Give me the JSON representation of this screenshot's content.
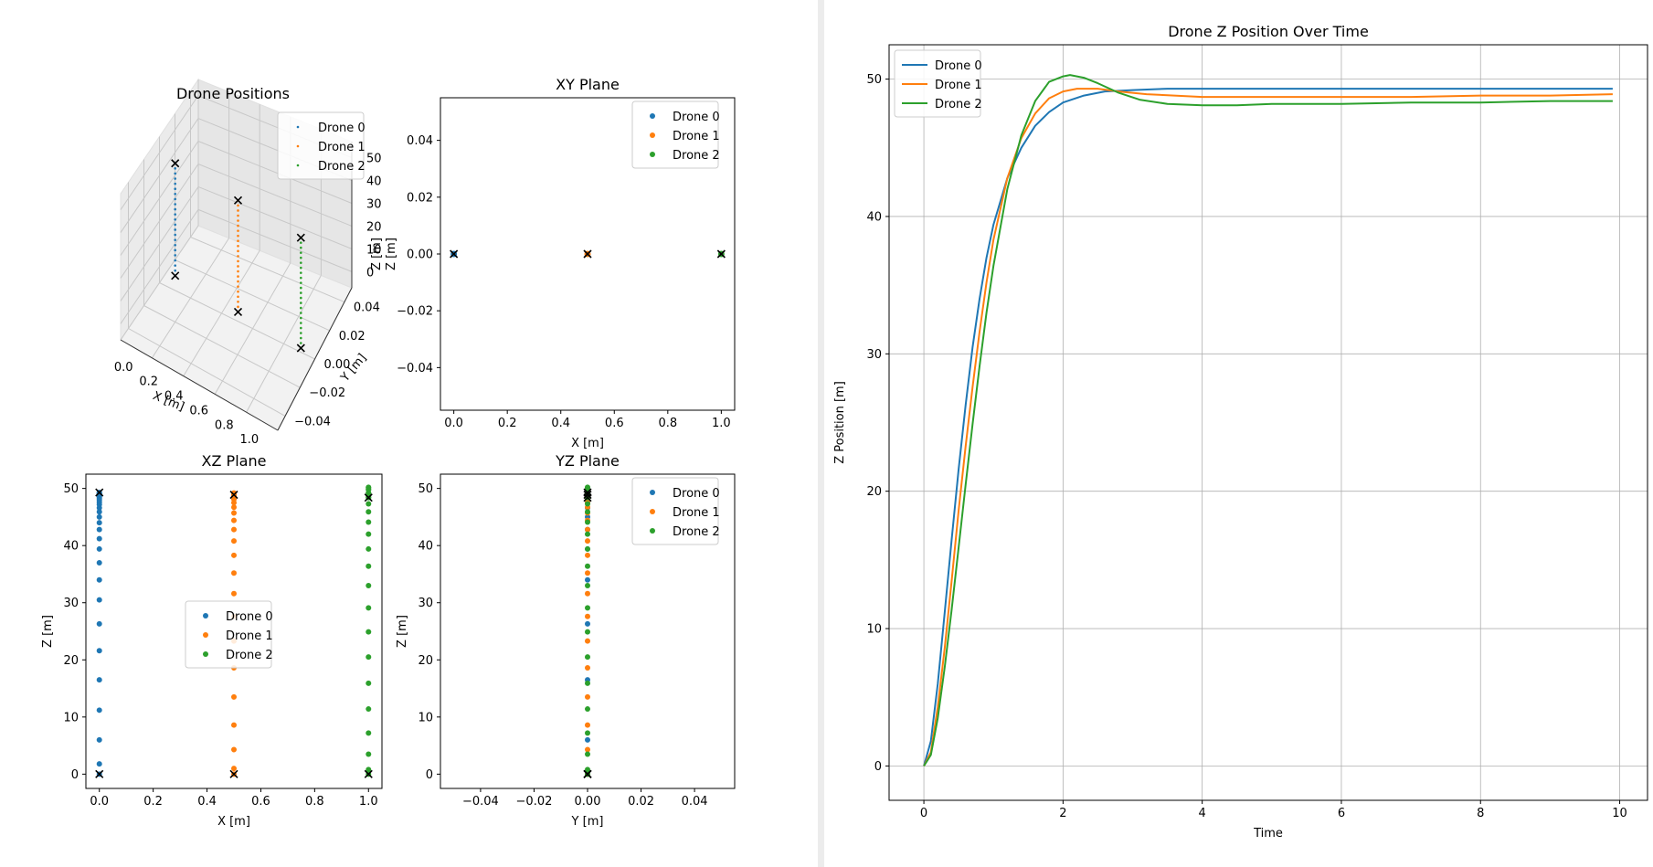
{
  "colors": {
    "drone0": "#1f77b4",
    "drone1": "#ff7f0e",
    "drone2": "#2ca02c",
    "marker": "#000000",
    "grid": "#b0b0b0"
  },
  "series_names": [
    "Drone 0",
    "Drone 1",
    "Drone 2"
  ],
  "chart_data": [
    {
      "id": "positions3d",
      "type": "scatter",
      "projection": "3d",
      "title": "Drone Positions",
      "xlabel": "X [m]",
      "ylabel": "Y [m]",
      "zlabel": "Z [m]",
      "xlim": [
        0,
        1
      ],
      "ylim": [
        -0.05,
        0.05
      ],
      "zlim": [
        0,
        50
      ],
      "xticks": [
        "0.0",
        "0.2",
        "0.4",
        "0.6",
        "0.8",
        "1.0"
      ],
      "yticks": [
        "−0.04",
        "−0.02",
        "0.00",
        "0.02",
        "0.04"
      ],
      "zticks": [
        "0",
        "10",
        "20",
        "30",
        "40",
        "50"
      ],
      "legend": "upper-right",
      "grid": true,
      "series": [
        {
          "name": "Drone 0",
          "x": 0.0,
          "y": 0.0,
          "start_z": 0,
          "end_z": 49.3
        },
        {
          "name": "Drone 1",
          "x": 0.5,
          "y": 0.0,
          "start_z": 0,
          "end_z": 48.9
        },
        {
          "name": "Drone 2",
          "x": 1.0,
          "y": 0.0,
          "start_z": 0,
          "end_z": 48.4
        }
      ]
    },
    {
      "id": "xy",
      "type": "scatter",
      "title": "XY Plane",
      "xlabel": "X [m]",
      "ylabel": "Z [m]",
      "xlim": [
        -0.05,
        1.05
      ],
      "ylim": [
        -0.055,
        0.055
      ],
      "xticks": [
        0,
        0.2,
        0.4,
        0.6,
        0.8,
        1.0
      ],
      "yticks": [
        -0.04,
        -0.02,
        0,
        0.02,
        0.04
      ],
      "legend": "upper-right",
      "grid": false,
      "series": [
        {
          "name": "Drone 0",
          "x": [
            0.0
          ],
          "y": [
            0.0
          ]
        },
        {
          "name": "Drone 1",
          "x": [
            0.5
          ],
          "y": [
            0.0
          ]
        },
        {
          "name": "Drone 2",
          "x": [
            1.0
          ],
          "y": [
            0.0
          ]
        }
      ],
      "markers": {
        "x": [
          0.0,
          0.5,
          1.0
        ],
        "y": [
          0.0,
          0.0,
          0.0
        ]
      }
    },
    {
      "id": "xz",
      "type": "scatter",
      "title": "XZ Plane",
      "xlabel": "X [m]",
      "ylabel": "Z [m]",
      "xlim": [
        -0.05,
        1.05
      ],
      "ylim": [
        -2.5,
        52.5
      ],
      "xticks": [
        0,
        0.2,
        0.4,
        0.6,
        0.8,
        1.0
      ],
      "yticks": [
        0,
        10,
        20,
        30,
        40,
        50
      ],
      "legend": "center",
      "grid": false,
      "series": [
        {
          "name": "Drone 0",
          "x": 0.0,
          "z": [
            0.0,
            1.8,
            6.0,
            11.2,
            16.5,
            21.6,
            26.3,
            30.5,
            34.0,
            37.0,
            39.4,
            41.2,
            42.8,
            44.0,
            45.0,
            45.9,
            46.6,
            47.2,
            47.6,
            48.0,
            48.3,
            48.5,
            48.7,
            48.9,
            49.0,
            49.1,
            49.2,
            49.3
          ]
        },
        {
          "name": "Drone 1",
          "x": 0.5,
          "z": [
            0.0,
            1.0,
            4.3,
            8.6,
            13.5,
            18.6,
            23.3,
            27.6,
            31.6,
            35.2,
            38.3,
            40.8,
            42.8,
            44.4,
            45.7,
            46.7,
            47.5,
            48.1,
            48.6,
            48.9,
            49.1,
            49.2,
            48.9
          ]
        },
        {
          "name": "Drone 2",
          "x": 1.0,
          "z": [
            0.0,
            0.8,
            3.5,
            7.2,
            11.4,
            15.9,
            20.5,
            24.9,
            29.1,
            33.0,
            36.4,
            39.4,
            42.0,
            44.1,
            45.9,
            47.3,
            48.4,
            49.2,
            49.8,
            50.1,
            50.2,
            49.8,
            49.2,
            48.7,
            48.4
          ]
        }
      ],
      "markers": {
        "x": [
          0.0,
          0.0,
          0.5,
          0.5,
          1.0,
          1.0
        ],
        "z": [
          0.0,
          49.3,
          0.0,
          48.9,
          0.0,
          48.4
        ]
      }
    },
    {
      "id": "yz",
      "type": "scatter",
      "title": "YZ Plane",
      "xlabel": "Y [m]",
      "ylabel": "Z [m]",
      "xlim": [
        -0.055,
        0.055
      ],
      "ylim": [
        -2.5,
        52.5
      ],
      "xticks": [
        -0.04,
        -0.02,
        0,
        0.02,
        0.04
      ],
      "yticks": [
        0,
        10,
        20,
        30,
        40,
        50
      ],
      "legend": "upper-right",
      "grid": false,
      "series": [
        {
          "name": "Drone 0",
          "y": 0.0,
          "z": [
            0.0,
            6.0,
            16.5,
            26.3,
            34.0,
            39.4,
            42.8,
            45.0,
            46.6,
            47.6,
            48.3,
            48.7,
            49.0,
            49.2,
            49.3
          ]
        },
        {
          "name": "Drone 1",
          "y": 0.0,
          "z": [
            0.0,
            4.3,
            8.6,
            13.5,
            18.6,
            23.3,
            27.6,
            31.6,
            35.2,
            38.3,
            40.8,
            42.8,
            44.4,
            45.7,
            46.7,
            47.5,
            48.1,
            48.6,
            48.9,
            49.1,
            49.2,
            48.9
          ]
        },
        {
          "name": "Drone 2",
          "y": 0.0,
          "z": [
            0.0,
            0.8,
            3.5,
            7.2,
            11.4,
            15.9,
            20.5,
            24.9,
            29.1,
            33.0,
            36.4,
            39.4,
            42.0,
            44.1,
            45.9,
            47.3,
            48.4,
            49.2,
            49.8,
            50.1,
            50.2,
            49.8,
            49.2,
            48.7,
            48.4
          ]
        }
      ],
      "markers": {
        "y": [
          0.0,
          0.0,
          0.0,
          0.0,
          0.0,
          0.0
        ],
        "z": [
          0.0,
          49.3,
          0.0,
          48.9,
          0.0,
          48.4
        ]
      }
    },
    {
      "id": "ztime",
      "type": "line",
      "title": "Drone Z Position Over Time",
      "xlabel": "Time",
      "ylabel": "Z Position [m]",
      "xlim": [
        -0.5,
        10.4
      ],
      "ylim": [
        -2.5,
        52.5
      ],
      "xticks": [
        0,
        2,
        4,
        6,
        8,
        10
      ],
      "yticks": [
        0,
        10,
        20,
        30,
        40,
        50
      ],
      "legend": "upper-left",
      "grid": true,
      "series": [
        {
          "name": "Drone 0",
          "x": [
            0,
            0.1,
            0.2,
            0.3,
            0.4,
            0.5,
            0.6,
            0.7,
            0.8,
            0.9,
            1.0,
            1.2,
            1.4,
            1.6,
            1.8,
            2.0,
            2.3,
            2.6,
            3.0,
            3.5,
            4.0,
            5.0,
            6.0,
            7.0,
            8.0,
            9.0,
            9.9
          ],
          "y": [
            0,
            1.8,
            6.0,
            11.2,
            16.5,
            21.6,
            26.3,
            30.5,
            34.0,
            37.0,
            39.4,
            42.8,
            45.0,
            46.6,
            47.6,
            48.3,
            48.8,
            49.1,
            49.2,
            49.3,
            49.3,
            49.3,
            49.3,
            49.3,
            49.3,
            49.3,
            49.3
          ]
        },
        {
          "name": "Drone 1",
          "x": [
            0,
            0.1,
            0.2,
            0.3,
            0.4,
            0.5,
            0.6,
            0.7,
            0.8,
            0.9,
            1.0,
            1.2,
            1.4,
            1.6,
            1.8,
            2.0,
            2.2,
            2.5,
            2.8,
            3.2,
            3.6,
            4.0,
            5.0,
            6.0,
            7.0,
            8.0,
            9.0,
            9.9
          ],
          "y": [
            0,
            1.0,
            4.3,
            8.6,
            13.5,
            18.6,
            23.3,
            27.6,
            31.6,
            35.2,
            38.3,
            42.8,
            45.7,
            47.5,
            48.6,
            49.1,
            49.3,
            49.3,
            49.1,
            48.9,
            48.8,
            48.7,
            48.7,
            48.7,
            48.7,
            48.8,
            48.8,
            48.9
          ]
        },
        {
          "name": "Drone 2",
          "x": [
            0,
            0.1,
            0.2,
            0.3,
            0.4,
            0.5,
            0.6,
            0.7,
            0.8,
            0.9,
            1.0,
            1.2,
            1.4,
            1.6,
            1.8,
            2.0,
            2.1,
            2.3,
            2.5,
            2.8,
            3.1,
            3.5,
            4.0,
            4.5,
            5.0,
            6.0,
            7.0,
            8.0,
            9.0,
            9.9
          ],
          "y": [
            0,
            0.8,
            3.5,
            7.2,
            11.4,
            15.9,
            20.5,
            24.9,
            29.1,
            33.0,
            36.4,
            42.0,
            45.9,
            48.4,
            49.8,
            50.2,
            50.3,
            50.1,
            49.7,
            49.0,
            48.5,
            48.2,
            48.1,
            48.1,
            48.2,
            48.2,
            48.3,
            48.3,
            48.4,
            48.4
          ]
        }
      ]
    }
  ]
}
